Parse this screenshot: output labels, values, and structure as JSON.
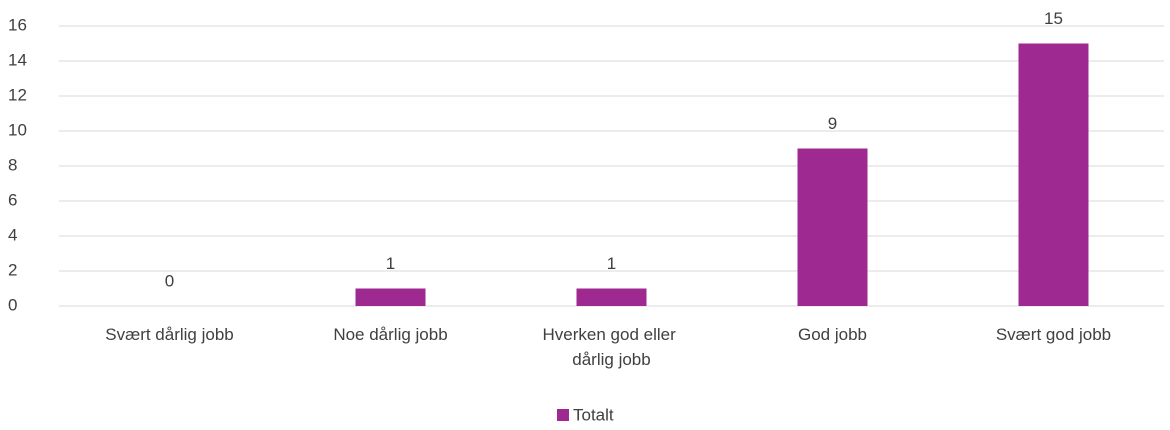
{
  "chart_data": {
    "type": "bar",
    "categories": [
      "Svært dårlig jobb",
      "Noe dårlig jobb",
      "Hverken god eller dårlig jobb",
      "God jobb",
      "Svært god jobb"
    ],
    "series": [
      {
        "name": "Totalt",
        "color": "#9e2a91",
        "values": [
          0,
          1,
          1,
          9,
          15
        ]
      }
    ],
    "ylim": [
      0,
      16
    ],
    "yticks": [
      0,
      2,
      4,
      6,
      8,
      10,
      12,
      14,
      16
    ],
    "grid": true,
    "legend": "bottom"
  }
}
